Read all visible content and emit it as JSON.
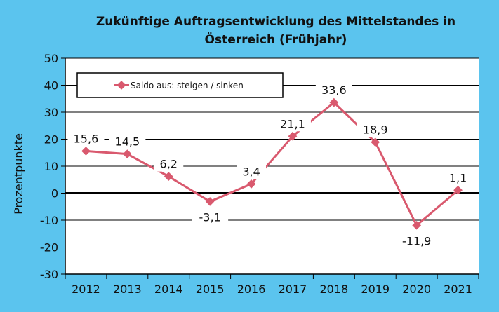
{
  "colors": {
    "frame": "#5bc4ee",
    "plot_background": "#ffffff",
    "series": "#d9596e",
    "axis": "#000000",
    "grid": "#000000"
  },
  "chart_data": {
    "type": "line",
    "title_lines": [
      "Zukünftige Auftragsentwicklung des Mittelstandes in",
      "Österreich (Frühjahr)"
    ],
    "xlabel": "",
    "ylabel": "Prozentpunkte",
    "ylim": [
      -30,
      50
    ],
    "yticks": [
      50,
      40,
      30,
      20,
      10,
      0,
      -10,
      -20,
      -30
    ],
    "categories": [
      "2012",
      "2013",
      "2014",
      "2015",
      "2016",
      "2017",
      "2018",
      "2019",
      "2020",
      "2021"
    ],
    "series": [
      {
        "name": "Saldo aus: steigen / sinken",
        "values": [
          15.6,
          14.5,
          6.2,
          -3.1,
          3.4,
          21.1,
          33.6,
          18.9,
          -11.9,
          1.1
        ],
        "labels": [
          "15,6",
          "14,5",
          "6,2",
          "-3,1",
          "3,4",
          "21,1",
          "33,6",
          "18,9",
          "-11,9",
          "1,1"
        ]
      }
    ],
    "grid": true,
    "legend": "top-left"
  }
}
